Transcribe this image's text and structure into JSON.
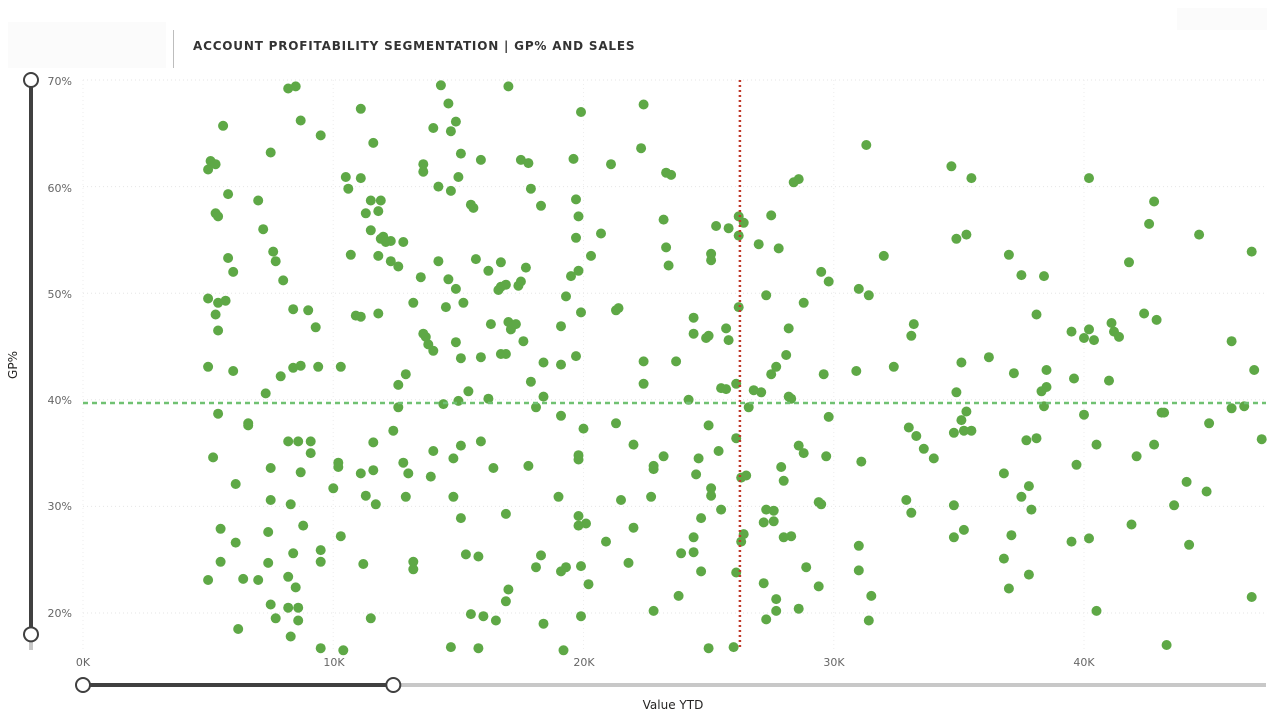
{
  "header": {
    "title": "ACCOUNT PROFITABILITY SEGMENTATION | GP% AND SALES"
  },
  "colors": {
    "points": "#5ea846",
    "average_line": "#70c172",
    "reference_line": "#c0392b",
    "slider_active": "#404040",
    "slider_track": "#c8c8c8"
  },
  "sliders": {
    "y_slider": {
      "range": [
        0.18,
        0.7
      ]
    },
    "x_slider": {
      "range": [
        0,
        12400
      ]
    }
  },
  "chart_data": {
    "type": "scatter",
    "title": "",
    "xlabel": "Value YTD",
    "ylabel": "GP%",
    "xlim": [
      0,
      47200
    ],
    "ylim": [
      0.165,
      0.7
    ],
    "x_ticks": [
      "0K",
      "10K",
      "20K",
      "30K",
      "40K"
    ],
    "y_ticks": [
      "20%",
      "30%",
      "40%",
      "50%",
      "60%",
      "70%"
    ],
    "grid": true,
    "average_gp_line": 0.397,
    "average_value_line": 26250,
    "points": [
      [
        5000,
        0.616
      ],
      [
        5100,
        0.624
      ],
      [
        5300,
        0.621
      ],
      [
        5600,
        0.657
      ],
      [
        5300,
        0.575
      ],
      [
        5400,
        0.572
      ],
      [
        5800,
        0.593
      ],
      [
        5800,
        0.533
      ],
      [
        6000,
        0.52
      ],
      [
        5000,
        0.495
      ],
      [
        5400,
        0.491
      ],
      [
        5700,
        0.493
      ],
      [
        5300,
        0.48
      ],
      [
        5400,
        0.465
      ],
      [
        6000,
        0.427
      ],
      [
        5000,
        0.431
      ],
      [
        5400,
        0.387
      ],
      [
        5200,
        0.346
      ],
      [
        6100,
        0.321
      ],
      [
        5500,
        0.279
      ],
      [
        6100,
        0.266
      ],
      [
        5500,
        0.248
      ],
      [
        5000,
        0.231
      ],
      [
        6400,
        0.232
      ],
      [
        6200,
        0.185
      ],
      [
        7200,
        0.56
      ],
      [
        7500,
        0.632
      ],
      [
        7600,
        0.539
      ],
      [
        7700,
        0.53
      ],
      [
        7000,
        0.587
      ],
      [
        8000,
        0.512
      ],
      [
        8200,
        0.692
      ],
      [
        8500,
        0.694
      ],
      [
        8700,
        0.662
      ],
      [
        9500,
        0.648
      ],
      [
        8400,
        0.485
      ],
      [
        9000,
        0.484
      ],
      [
        9300,
        0.468
      ],
      [
        7900,
        0.422
      ],
      [
        8400,
        0.43
      ],
      [
        8700,
        0.432
      ],
      [
        9400,
        0.431
      ],
      [
        7300,
        0.406
      ],
      [
        6600,
        0.378
      ],
      [
        6600,
        0.376
      ],
      [
        8200,
        0.361
      ],
      [
        8600,
        0.361
      ],
      [
        9100,
        0.361
      ],
      [
        9100,
        0.35
      ],
      [
        7500,
        0.336
      ],
      [
        8700,
        0.332
      ],
      [
        8300,
        0.302
      ],
      [
        7500,
        0.306
      ],
      [
        8800,
        0.282
      ],
      [
        7400,
        0.276
      ],
      [
        8400,
        0.256
      ],
      [
        9500,
        0.259
      ],
      [
        7400,
        0.247
      ],
      [
        9500,
        0.248
      ],
      [
        7000,
        0.231
      ],
      [
        8200,
        0.234
      ],
      [
        8500,
        0.224
      ],
      [
        7500,
        0.208
      ],
      [
        8200,
        0.205
      ],
      [
        8600,
        0.205
      ],
      [
        7700,
        0.195
      ],
      [
        8600,
        0.193
      ],
      [
        8300,
        0.178
      ],
      [
        9500,
        0.167
      ],
      [
        10400,
        0.165
      ],
      [
        11100,
        0.673
      ],
      [
        11600,
        0.641
      ],
      [
        10500,
        0.609
      ],
      [
        11100,
        0.608
      ],
      [
        10600,
        0.598
      ],
      [
        11300,
        0.575
      ],
      [
        11500,
        0.587
      ],
      [
        11800,
        0.577
      ],
      [
        11900,
        0.587
      ],
      [
        11500,
        0.559
      ],
      [
        11900,
        0.551
      ],
      [
        12100,
        0.548
      ],
      [
        12000,
        0.553
      ],
      [
        12300,
        0.549
      ],
      [
        12800,
        0.548
      ],
      [
        10700,
        0.536
      ],
      [
        11800,
        0.535
      ],
      [
        12300,
        0.53
      ],
      [
        12600,
        0.525
      ],
      [
        10900,
        0.479
      ],
      [
        11100,
        0.478
      ],
      [
        11800,
        0.481
      ],
      [
        10300,
        0.431
      ],
      [
        12600,
        0.414
      ],
      [
        12900,
        0.424
      ],
      [
        12600,
        0.393
      ],
      [
        10200,
        0.341
      ],
      [
        10200,
        0.337
      ],
      [
        10000,
        0.317
      ],
      [
        10300,
        0.272
      ],
      [
        11600,
        0.36
      ],
      [
        11100,
        0.331
      ],
      [
        11600,
        0.334
      ],
      [
        12800,
        0.341
      ],
      [
        12400,
        0.371
      ],
      [
        11300,
        0.31
      ],
      [
        11700,
        0.302
      ],
      [
        13000,
        0.331
      ],
      [
        12900,
        0.309
      ],
      [
        13200,
        0.248
      ],
      [
        13200,
        0.241
      ],
      [
        11200,
        0.246
      ],
      [
        11500,
        0.195
      ],
      [
        14300,
        0.695
      ],
      [
        14700,
        0.652
      ],
      [
        14600,
        0.678
      ],
      [
        14000,
        0.655
      ],
      [
        14900,
        0.661
      ],
      [
        15100,
        0.631
      ],
      [
        13600,
        0.621
      ],
      [
        13600,
        0.614
      ],
      [
        14200,
        0.6
      ],
      [
        14700,
        0.596
      ],
      [
        15000,
        0.609
      ],
      [
        15500,
        0.583
      ],
      [
        15600,
        0.58
      ],
      [
        15900,
        0.625
      ],
      [
        14200,
        0.53
      ],
      [
        14600,
        0.513
      ],
      [
        14900,
        0.504
      ],
      [
        15200,
        0.491
      ],
      [
        15700,
        0.532
      ],
      [
        16200,
        0.521
      ],
      [
        13500,
        0.515
      ],
      [
        13200,
        0.491
      ],
      [
        14500,
        0.487
      ],
      [
        13600,
        0.462
      ],
      [
        13700,
        0.459
      ],
      [
        13800,
        0.452
      ],
      [
        14000,
        0.446
      ],
      [
        14900,
        0.454
      ],
      [
        15100,
        0.439
      ],
      [
        15400,
        0.408
      ],
      [
        16300,
        0.471
      ],
      [
        15900,
        0.44
      ],
      [
        16700,
        0.443
      ],
      [
        14400,
        0.396
      ],
      [
        15000,
        0.399
      ],
      [
        16200,
        0.401
      ],
      [
        14000,
        0.352
      ],
      [
        14800,
        0.345
      ],
      [
        15900,
        0.361
      ],
      [
        15100,
        0.357
      ],
      [
        16400,
        0.336
      ],
      [
        14800,
        0.309
      ],
      [
        15100,
        0.289
      ],
      [
        13900,
        0.328
      ],
      [
        15300,
        0.255
      ],
      [
        15800,
        0.253
      ],
      [
        15500,
        0.199
      ],
      [
        16000,
        0.197
      ],
      [
        16500,
        0.193
      ],
      [
        14700,
        0.168
      ],
      [
        15800,
        0.167
      ],
      [
        17000,
        0.694
      ],
      [
        17500,
        0.625
      ],
      [
        17800,
        0.622
      ],
      [
        16700,
        0.529
      ],
      [
        16700,
        0.506
      ],
      [
        16600,
        0.503
      ],
      [
        16900,
        0.508
      ],
      [
        17400,
        0.507
      ],
      [
        17500,
        0.511
      ],
      [
        17700,
        0.524
      ],
      [
        17900,
        0.598
      ],
      [
        18300,
        0.582
      ],
      [
        17000,
        0.473
      ],
      [
        17100,
        0.466
      ],
      [
        17300,
        0.471
      ],
      [
        16900,
        0.443
      ],
      [
        17600,
        0.455
      ],
      [
        17900,
        0.417
      ],
      [
        18400,
        0.435
      ],
      [
        18100,
        0.393
      ],
      [
        18400,
        0.403
      ],
      [
        17800,
        0.338
      ],
      [
        16900,
        0.293
      ],
      [
        17000,
        0.222
      ],
      [
        16900,
        0.211
      ],
      [
        18300,
        0.254
      ],
      [
        18100,
        0.243
      ],
      [
        18400,
        0.19
      ],
      [
        19100,
        0.433
      ],
      [
        19100,
        0.469
      ],
      [
        19300,
        0.497
      ],
      [
        19500,
        0.516
      ],
      [
        19700,
        0.552
      ],
      [
        19700,
        0.588
      ],
      [
        19600,
        0.626
      ],
      [
        19800,
        0.521
      ],
      [
        19800,
        0.572
      ],
      [
        19900,
        0.67
      ],
      [
        19900,
        0.482
      ],
      [
        19700,
        0.441
      ],
      [
        19100,
        0.385
      ],
      [
        19800,
        0.348
      ],
      [
        19800,
        0.344
      ],
      [
        20000,
        0.373
      ],
      [
        19000,
        0.309
      ],
      [
        19800,
        0.291
      ],
      [
        20100,
        0.284
      ],
      [
        19800,
        0.282
      ],
      [
        19100,
        0.239
      ],
      [
        19300,
        0.243
      ],
      [
        19900,
        0.244
      ],
      [
        20200,
        0.227
      ],
      [
        19900,
        0.197
      ],
      [
        19200,
        0.165
      ],
      [
        20300,
        0.535
      ],
      [
        20700,
        0.556
      ],
      [
        21100,
        0.621
      ],
      [
        21400,
        0.486
      ],
      [
        21300,
        0.484
      ],
      [
        21300,
        0.378
      ],
      [
        21500,
        0.306
      ],
      [
        20900,
        0.267
      ],
      [
        21800,
        0.247
      ],
      [
        22000,
        0.358
      ],
      [
        22000,
        0.28
      ],
      [
        22300,
        0.636
      ],
      [
        22400,
        0.677
      ],
      [
        22400,
        0.436
      ],
      [
        22400,
        0.415
      ],
      [
        22800,
        0.338
      ],
      [
        22800,
        0.335
      ],
      [
        22700,
        0.309
      ],
      [
        22800,
        0.202
      ],
      [
        23300,
        0.613
      ],
      [
        23500,
        0.611
      ],
      [
        23200,
        0.569
      ],
      [
        23300,
        0.543
      ],
      [
        23400,
        0.526
      ],
      [
        23700,
        0.436
      ],
      [
        23200,
        0.347
      ],
      [
        23900,
        0.256
      ],
      [
        23800,
        0.216
      ],
      [
        24200,
        0.4
      ],
      [
        24400,
        0.477
      ],
      [
        24400,
        0.462
      ],
      [
        24600,
        0.345
      ],
      [
        24500,
        0.33
      ],
      [
        24400,
        0.271
      ],
      [
        24400,
        0.257
      ],
      [
        24700,
        0.239
      ],
      [
        24700,
        0.289
      ],
      [
        24900,
        0.458
      ],
      [
        25000,
        0.46
      ],
      [
        25000,
        0.376
      ],
      [
        25100,
        0.317
      ],
      [
        25100,
        0.31
      ],
      [
        25000,
        0.167
      ],
      [
        25100,
        0.531
      ],
      [
        25100,
        0.537
      ],
      [
        25300,
        0.563
      ],
      [
        25800,
        0.561
      ],
      [
        25700,
        0.467
      ],
      [
        25800,
        0.456
      ],
      [
        25500,
        0.411
      ],
      [
        25700,
        0.41
      ],
      [
        25400,
        0.352
      ],
      [
        25500,
        0.297
      ],
      [
        26000,
        0.168
      ],
      [
        26200,
        0.572
      ],
      [
        26400,
        0.566
      ],
      [
        26200,
        0.554
      ],
      [
        26200,
        0.487
      ],
      [
        26100,
        0.415
      ],
      [
        26100,
        0.364
      ],
      [
        26300,
        0.327
      ],
      [
        26400,
        0.274
      ],
      [
        26300,
        0.267
      ],
      [
        26100,
        0.238
      ],
      [
        26600,
        0.393
      ],
      [
        26800,
        0.409
      ],
      [
        26500,
        0.329
      ],
      [
        27000,
        0.546
      ],
      [
        27500,
        0.573
      ],
      [
        27300,
        0.498
      ],
      [
        27800,
        0.542
      ],
      [
        27100,
        0.407
      ],
      [
        27500,
        0.424
      ],
      [
        27700,
        0.431
      ],
      [
        27900,
        0.337
      ],
      [
        28100,
        0.442
      ],
      [
        28300,
        0.401
      ],
      [
        28200,
        0.467
      ],
      [
        28200,
        0.403
      ],
      [
        28000,
        0.324
      ],
      [
        27300,
        0.297
      ],
      [
        27600,
        0.296
      ],
      [
        27200,
        0.285
      ],
      [
        27600,
        0.286
      ],
      [
        28000,
        0.271
      ],
      [
        27200,
        0.228
      ],
      [
        27700,
        0.213
      ],
      [
        27700,
        0.202
      ],
      [
        27300,
        0.194
      ],
      [
        28400,
        0.604
      ],
      [
        28600,
        0.607
      ],
      [
        28800,
        0.491
      ],
      [
        28600,
        0.357
      ],
      [
        28800,
        0.35
      ],
      [
        28900,
        0.243
      ],
      [
        28300,
        0.272
      ],
      [
        28600,
        0.204
      ],
      [
        29500,
        0.52
      ],
      [
        29800,
        0.511
      ],
      [
        29600,
        0.424
      ],
      [
        29800,
        0.384
      ],
      [
        29700,
        0.347
      ],
      [
        29400,
        0.304
      ],
      [
        29500,
        0.302
      ],
      [
        29400,
        0.225
      ],
      [
        31000,
        0.504
      ],
      [
        31400,
        0.498
      ],
      [
        31300,
        0.639
      ],
      [
        32000,
        0.535
      ],
      [
        30900,
        0.427
      ],
      [
        31100,
        0.342
      ],
      [
        31000,
        0.263
      ],
      [
        31000,
        0.24
      ],
      [
        31500,
        0.216
      ],
      [
        31400,
        0.193
      ],
      [
        32400,
        0.431
      ],
      [
        33200,
        0.471
      ],
      [
        33100,
        0.46
      ],
      [
        33000,
        0.374
      ],
      [
        33300,
        0.366
      ],
      [
        33600,
        0.354
      ],
      [
        32900,
        0.306
      ],
      [
        33100,
        0.294
      ],
      [
        34000,
        0.345
      ],
      [
        34700,
        0.619
      ],
      [
        34900,
        0.551
      ],
      [
        35300,
        0.555
      ],
      [
        35500,
        0.608
      ],
      [
        35100,
        0.435
      ],
      [
        34900,
        0.407
      ],
      [
        35300,
        0.389
      ],
      [
        35100,
        0.381
      ],
      [
        34800,
        0.369
      ],
      [
        35200,
        0.371
      ],
      [
        35500,
        0.371
      ],
      [
        34800,
        0.301
      ],
      [
        34800,
        0.271
      ],
      [
        35200,
        0.278
      ],
      [
        36200,
        0.44
      ],
      [
        37000,
        0.536
      ],
      [
        37500,
        0.517
      ],
      [
        37200,
        0.425
      ],
      [
        37700,
        0.362
      ],
      [
        37500,
        0.309
      ],
      [
        37100,
        0.273
      ],
      [
        37000,
        0.223
      ],
      [
        36800,
        0.331
      ],
      [
        36800,
        0.251
      ],
      [
        37800,
        0.319
      ],
      [
        37800,
        0.236
      ],
      [
        38100,
        0.48
      ],
      [
        38400,
        0.516
      ],
      [
        38500,
        0.428
      ],
      [
        38500,
        0.412
      ],
      [
        38300,
        0.408
      ],
      [
        38400,
        0.394
      ],
      [
        38100,
        0.364
      ],
      [
        37900,
        0.297
      ],
      [
        39500,
        0.464
      ],
      [
        39600,
        0.42
      ],
      [
        39700,
        0.339
      ],
      [
        39500,
        0.267
      ],
      [
        40000,
        0.458
      ],
      [
        40200,
        0.466
      ],
      [
        40400,
        0.456
      ],
      [
        40200,
        0.608
      ],
      [
        40000,
        0.386
      ],
      [
        40200,
        0.27
      ],
      [
        40500,
        0.358
      ],
      [
        40500,
        0.202
      ],
      [
        41000,
        0.418
      ],
      [
        41100,
        0.472
      ],
      [
        41200,
        0.464
      ],
      [
        41400,
        0.459
      ],
      [
        41800,
        0.529
      ],
      [
        41900,
        0.283
      ],
      [
        42100,
        0.347
      ],
      [
        42400,
        0.481
      ],
      [
        42600,
        0.565
      ],
      [
        42800,
        0.586
      ],
      [
        42900,
        0.475
      ],
      [
        42800,
        0.358
      ],
      [
        43100,
        0.388
      ],
      [
        43200,
        0.388
      ],
      [
        43300,
        0.17
      ],
      [
        43600,
        0.301
      ],
      [
        44100,
        0.323
      ],
      [
        44200,
        0.264
      ],
      [
        44600,
        0.555
      ],
      [
        44900,
        0.314
      ],
      [
        45000,
        0.378
      ],
      [
        45900,
        0.455
      ],
      [
        45900,
        0.392
      ],
      [
        46400,
        0.394
      ],
      [
        46700,
        0.539
      ],
      [
        46800,
        0.428
      ],
      [
        47100,
        0.363
      ],
      [
        46700,
        0.215
      ]
    ]
  }
}
